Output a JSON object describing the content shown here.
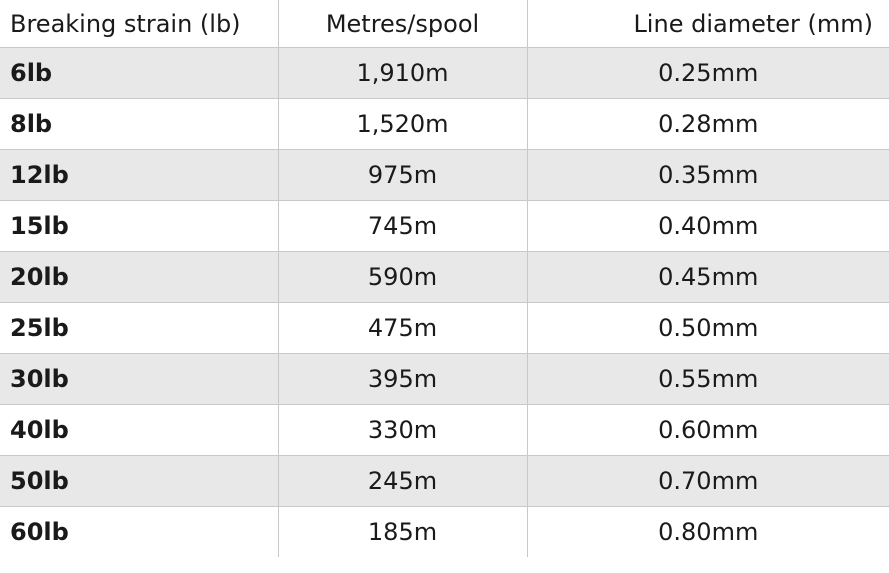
{
  "table": {
    "header": [
      "Breaking strain (lb)",
      "Metres/spool",
      "Line diameter (mm)"
    ],
    "rows": [
      [
        "6lb",
        "1,910m",
        "0.25mm"
      ],
      [
        "8lb",
        "1,520m",
        "0.28mm"
      ],
      [
        "12lb",
        "975m",
        "0.35mm"
      ],
      [
        "15lb",
        "745m",
        "0.40mm"
      ],
      [
        "20lb",
        "590m",
        "0.45mm"
      ],
      [
        "25lb",
        "475m",
        "0.50mm"
      ],
      [
        "30lb",
        "395m",
        "0.55mm"
      ],
      [
        "40lb",
        "330m",
        "0.60mm"
      ],
      [
        "50lb",
        "245m",
        "0.70mm"
      ],
      [
        "60lb",
        "185m",
        "0.80mm"
      ]
    ]
  }
}
